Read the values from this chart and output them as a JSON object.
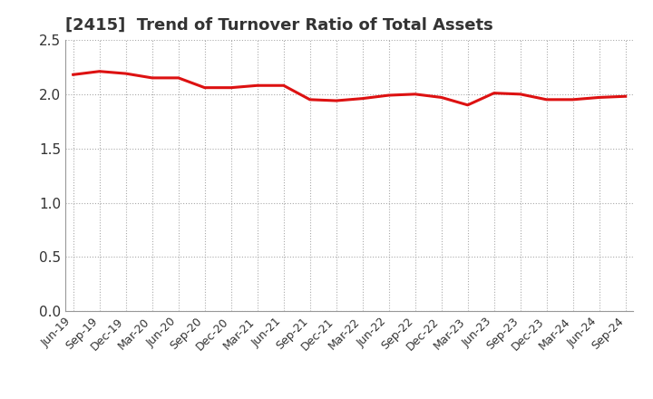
{
  "title": "[2415]  Trend of Turnover Ratio of Total Assets",
  "x_labels": [
    "Jun-19",
    "Sep-19",
    "Dec-19",
    "Mar-20",
    "Jun-20",
    "Sep-20",
    "Dec-20",
    "Mar-21",
    "Jun-21",
    "Sep-21",
    "Dec-21",
    "Mar-22",
    "Jun-22",
    "Sep-22",
    "Dec-22",
    "Mar-23",
    "Jun-23",
    "Sep-23",
    "Dec-23",
    "Mar-24",
    "Jun-24",
    "Sep-24"
  ],
  "y_values": [
    2.18,
    2.21,
    2.19,
    2.15,
    2.15,
    2.06,
    2.06,
    2.08,
    2.08,
    1.95,
    1.94,
    1.96,
    1.99,
    2.0,
    1.97,
    1.9,
    2.01,
    2.0,
    1.95,
    1.95,
    1.97,
    1.98
  ],
  "ylim": [
    0.0,
    2.5
  ],
  "yticks": [
    0.0,
    0.5,
    1.0,
    1.5,
    2.0,
    2.5
  ],
  "line_color": "#dd1111",
  "background_color": "#ffffff",
  "grid_color": "#aaaaaa",
  "title_color": "#333333",
  "title_fontsize": 13,
  "line_width": 2.2
}
